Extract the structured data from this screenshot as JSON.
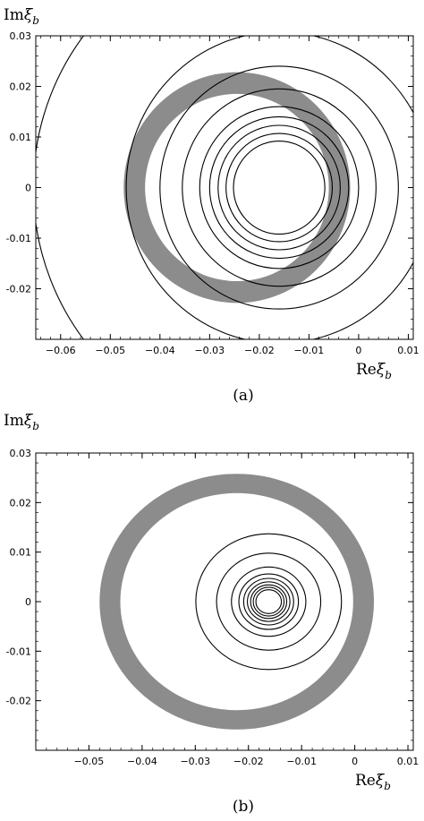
{
  "chart_data": [
    {
      "panel": "(a)",
      "type": "contour",
      "xlabel_main": "Re",
      "xlabel_sym": "ξ",
      "xlabel_sub": "b",
      "ylabel_main": "Im",
      "ylabel_sym": "ξ",
      "ylabel_sub": "b",
      "xlim": [
        -0.065,
        0.011
      ],
      "ylim": [
        -0.03,
        0.03
      ],
      "xticks": [
        -0.06,
        -0.05,
        -0.04,
        -0.03,
        -0.02,
        -0.01,
        0,
        0.01
      ],
      "xtick_labels": [
        "−0.06",
        "−0.05",
        "−0.04",
        "−0.03",
        "−0.02",
        "−0.01",
        "0",
        "0.01"
      ],
      "yticks": [
        0.03,
        0.02,
        0.01,
        0,
        -0.01,
        -0.02
      ],
      "ytick_labels": [
        "0.03",
        "0.02",
        "0.01",
        "0",
        "-0.01",
        "-0.02"
      ],
      "band": {
        "cx": -0.0245,
        "cy": 0.0,
        "r_inner": 0.0185,
        "r_outer": 0.0228,
        "color": "#8c8c8c"
      },
      "contour_center": [
        -0.016,
        0.0
      ],
      "contour_radii": [
        0.0092,
        0.0107,
        0.0123,
        0.014,
        0.016,
        0.0195,
        0.024,
        0.0308
      ],
      "corner_contour": {
        "cx": -0.016,
        "cy": 0.0,
        "r": 0.0495
      }
    },
    {
      "panel": "(b)",
      "type": "contour",
      "xlabel_main": "Re",
      "xlabel_sym": "ξ",
      "xlabel_sub": "b",
      "ylabel_main": "Im",
      "ylabel_sym": "ξ",
      "ylabel_sub": "b",
      "xlim": [
        -0.06,
        0.011
      ],
      "ylim": [
        -0.03,
        0.03
      ],
      "xticks": [
        -0.05,
        -0.04,
        -0.03,
        -0.02,
        -0.01,
        0,
        0.01
      ],
      "xtick_labels": [
        "−0.05",
        "−0.04",
        "−0.03",
        "−0.02",
        "−0.01",
        "0",
        "0.01"
      ],
      "yticks": [
        0.03,
        0.02,
        0.01,
        0,
        -0.01,
        -0.02
      ],
      "ytick_labels": [
        "0.03",
        "0.02",
        "0.01",
        "0",
        "-0.01",
        "-0.02"
      ],
      "band": {
        "cx": -0.0222,
        "cy": 0.0,
        "r_inner": 0.0219,
        "r_outer": 0.0258,
        "color": "#8c8c8c"
      },
      "contour_center": [
        -0.0162,
        0.0
      ],
      "contour_radii": [
        0.0024,
        0.0029,
        0.0034,
        0.004,
        0.0047,
        0.0056,
        0.007,
        0.0098,
        0.0137
      ]
    }
  ]
}
